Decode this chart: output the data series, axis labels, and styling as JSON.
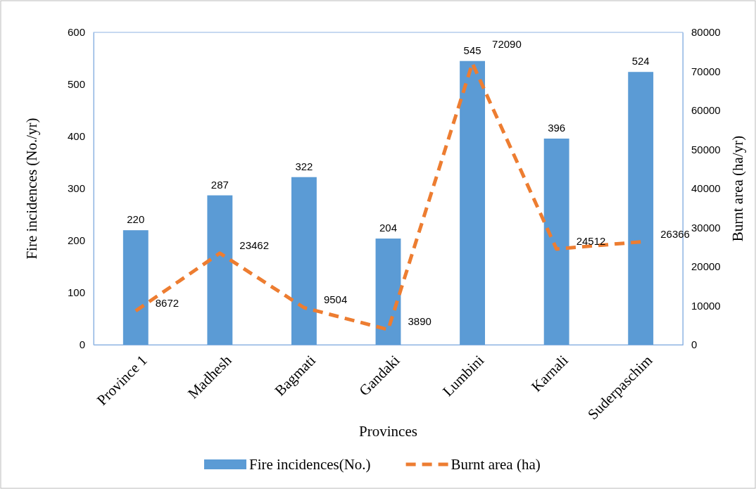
{
  "chart_data": {
    "type": "bar",
    "xlabel": "Provinces",
    "ylabel": "Fire incidences (No./yr)",
    "y2label": "Burnt area (ha/yr)",
    "categories": [
      "Province 1",
      "Madhesh",
      "Bagmati",
      "Gandaki",
      "Lumbini",
      "Karnali",
      "Suderpaschim"
    ],
    "series": [
      {
        "name": "Fire incidences(No.)",
        "color": "#5b9bd5",
        "values": [
          220,
          287,
          322,
          204,
          545,
          396,
          524
        ]
      },
      {
        "name": "Burnt area (ha)",
        "type": "line",
        "axis": "y2",
        "color": "#ed7d31",
        "line_style": "dashed",
        "marker": "none",
        "values": [
          8672,
          23462,
          9504,
          3890,
          72090,
          24512,
          26366
        ]
      }
    ],
    "ylim": [
      0,
      600
    ],
    "yticks": [
      0,
      100,
      200,
      300,
      400,
      500,
      600
    ],
    "y2lim": [
      0,
      80000
    ],
    "y2ticks": [
      0,
      10000,
      20000,
      30000,
      40000,
      50000,
      60000,
      70000,
      80000
    ],
    "data_labels": true,
    "legend": "bottom",
    "grid": false
  }
}
